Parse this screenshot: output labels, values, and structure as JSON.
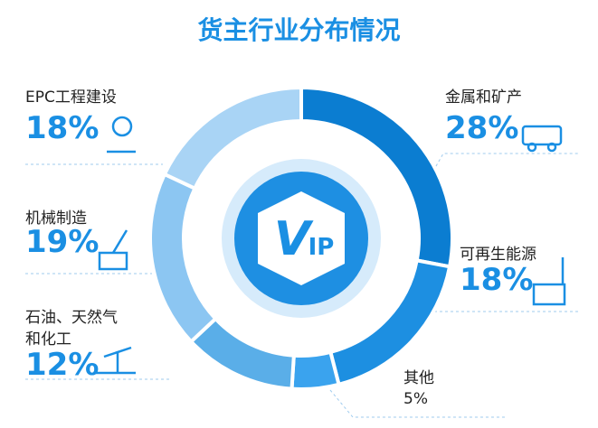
{
  "chart_data": {
    "type": "donut",
    "title": "货主行业分布情况",
    "categories": [
      "金属和矿产",
      "可再生能源",
      "其他",
      "石油、天然气和化工",
      "机械制造",
      "EPC工程建设"
    ],
    "values": [
      28,
      18,
      5,
      12,
      19,
      18
    ],
    "value_labels": [
      "28%",
      "18%",
      "5%",
      "12%",
      "19%",
      "18%"
    ],
    "colors": [
      "#0b7dd1",
      "#1d8fe1",
      "#3aa3ee",
      "#5aaee8",
      "#8cc6f2",
      "#a9d4f5"
    ],
    "center_logo": [
      "V",
      "IP"
    ]
  }
}
